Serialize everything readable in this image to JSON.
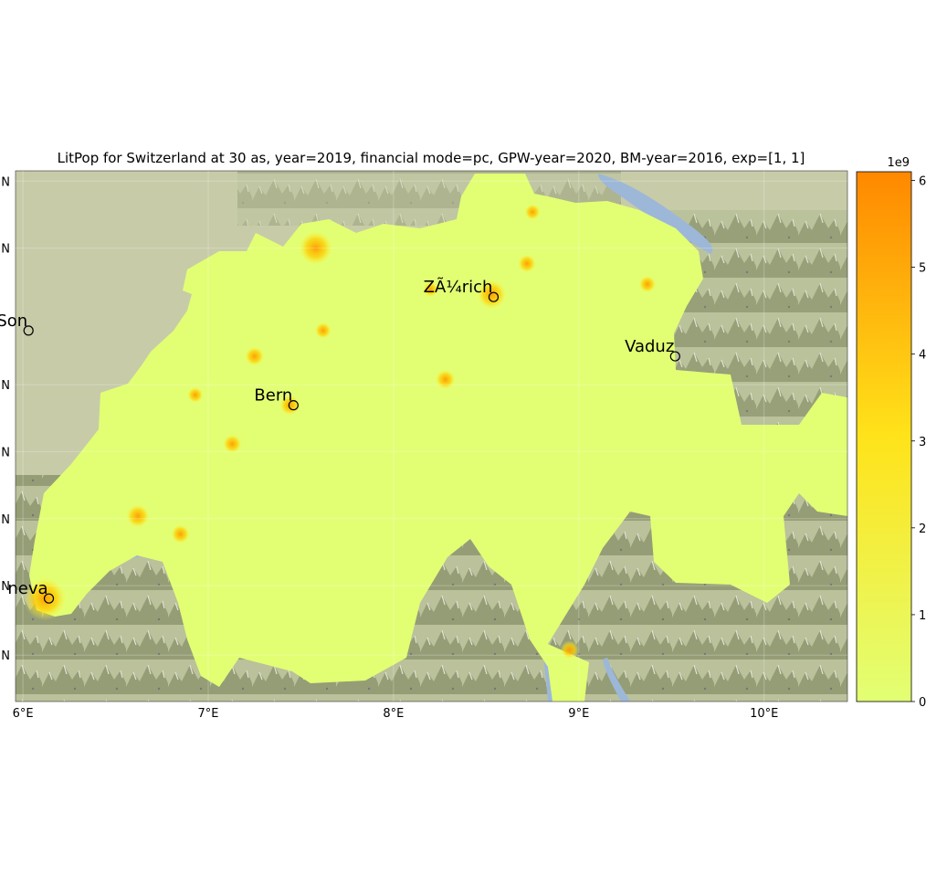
{
  "title": "LitPop for Switzerland at 30 as, year=2019, financial mode=pc, GPW-year=2020, BM-year=2016, exp=[1, 1]",
  "map": {
    "x_range": [
      5.96,
      10.45
    ],
    "y_range": [
      45.8,
      47.86
    ],
    "x_ticks": [
      {
        "value": 6,
        "label": "6°E"
      },
      {
        "value": 7,
        "label": "7°E"
      },
      {
        "value": 8,
        "label": "8°E"
      },
      {
        "value": 9,
        "label": "9°E"
      },
      {
        "value": 10,
        "label": "10°E"
      }
    ],
    "y_ticks": [
      {
        "value": 47.82,
        "label": "N"
      },
      {
        "value": 47.56,
        "label": "N"
      },
      {
        "value": 47.03,
        "label": "N"
      },
      {
        "value": 46.77,
        "label": "N"
      },
      {
        "value": 46.51,
        "label": "N"
      },
      {
        "value": 46.25,
        "label": "N"
      },
      {
        "value": 45.98,
        "label": "N"
      }
    ],
    "cities": [
      {
        "name": "Zürich",
        "label": "ZÃ¼rich",
        "lon": 8.54,
        "lat": 47.37
      },
      {
        "name": "Vaduz",
        "label": "Vaduz",
        "lon": 9.52,
        "lat": 47.14
      },
      {
        "name": "Bern",
        "label": "Bern",
        "lon": 7.46,
        "lat": 46.95
      },
      {
        "name": "Besançon",
        "label": "Son",
        "lon": 6.03,
        "lat": 47.24
      },
      {
        "name": "Geneva",
        "label": "neva",
        "lon": 6.14,
        "lat": 46.2
      }
    ],
    "hotspots": [
      {
        "lon": 8.53,
        "lat": 47.38,
        "value": 3.4
      },
      {
        "lon": 7.58,
        "lat": 47.56,
        "value": 4.2
      },
      {
        "lon": 6.12,
        "lat": 46.2,
        "value": 5.6
      },
      {
        "lon": 6.62,
        "lat": 46.52,
        "value": 2.3
      },
      {
        "lon": 7.44,
        "lat": 46.95,
        "value": 1.8
      },
      {
        "lon": 8.28,
        "lat": 47.05,
        "value": 1.7
      },
      {
        "lon": 8.72,
        "lat": 47.5,
        "value": 1.4
      },
      {
        "lon": 7.25,
        "lat": 47.14,
        "value": 1.6
      },
      {
        "lon": 7.13,
        "lat": 46.8,
        "value": 1.5
      },
      {
        "lon": 6.85,
        "lat": 46.45,
        "value": 1.5
      },
      {
        "lon": 9.37,
        "lat": 47.42,
        "value": 1.2
      },
      {
        "lon": 8.95,
        "lat": 46.0,
        "value": 1.3
      },
      {
        "lon": 7.62,
        "lat": 47.24,
        "value": 1.1
      },
      {
        "lon": 6.93,
        "lat": 46.99,
        "value": 1.0
      },
      {
        "lon": 8.75,
        "lat": 47.7,
        "value": 1.0
      },
      {
        "lon": 8.2,
        "lat": 47.4,
        "value": 0.9
      }
    ]
  },
  "colorbar": {
    "multiplier": "1e9",
    "min": 0,
    "max": 6.1,
    "ticks": [
      {
        "value": 0,
        "label": "0"
      },
      {
        "value": 1,
        "label": "1"
      },
      {
        "value": 2,
        "label": "2"
      },
      {
        "value": 3,
        "label": "3"
      },
      {
        "value": 4,
        "label": "4"
      },
      {
        "value": 5,
        "label": "5"
      },
      {
        "value": 6,
        "label": "6"
      }
    ],
    "colors": {
      "low": "#e2ff74",
      "mid": "#ffe31a",
      "high": "#ff8800"
    }
  }
}
